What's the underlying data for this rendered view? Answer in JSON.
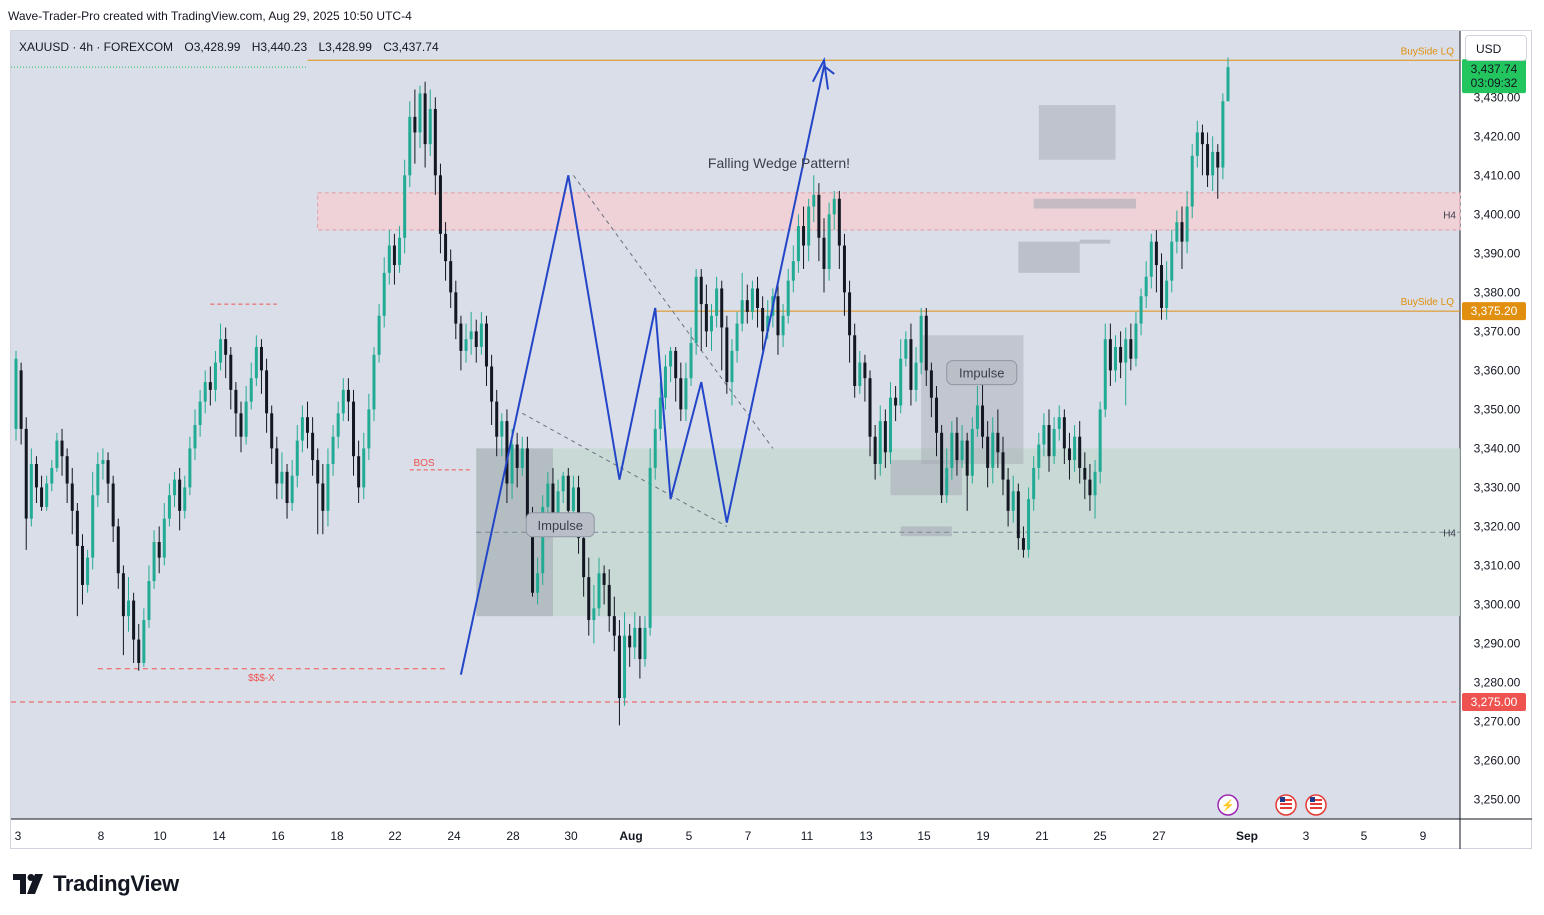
{
  "header": {
    "publisher_line": "Wave-Trader-Pro created with TradingView.com, Aug 29, 2025 10:50 UTC-4"
  },
  "symbol": {
    "name": "XAUUSD · 4h · FOREXCOM",
    "open": "O3,428.99",
    "high": "H3,440.23",
    "low": "L3,428.99",
    "close": "C3,437.74"
  },
  "currency_button": "USD",
  "brand": {
    "name": "TradingView"
  },
  "colors": {
    "up": "#22ab94",
    "down": "#131722",
    "price_badge": "#22c55e",
    "lq_line": "#e08f0e",
    "bos_line": "#ef5350",
    "pattern_line": "#2345c8",
    "demand_zone": "#c6d8d2",
    "supply_zone": "#f2d1d6",
    "impulse_box": "#a3a8b3"
  },
  "chart_data": {
    "type": "candlestick",
    "symbol": "XAUUSD",
    "timeframe": "4h",
    "ylim": [
      3245,
      3447
    ],
    "y_ticks": [
      3250,
      3260,
      3270,
      3280,
      3290,
      3300,
      3310,
      3320,
      3330,
      3340,
      3350,
      3360,
      3370,
      3380,
      3390,
      3400,
      3410,
      3420,
      3430
    ],
    "y_tick_labels": [
      "3,250.00",
      "3,260.00",
      "3,270.00",
      "3,280.00",
      "3,290.00",
      "3,300.00",
      "3,310.00",
      "3,320.00",
      "3,330.00",
      "3,340.00",
      "3,350.00",
      "3,360.00",
      "3,370.00",
      "3,380.00",
      "3,390.00",
      "3,400.00",
      "3,410.00",
      "3,420.00",
      "3,430.00"
    ],
    "x_tick_labels": [
      "3",
      "8",
      "10",
      "14",
      "16",
      "18",
      "22",
      "24",
      "28",
      "30",
      "Aug",
      "5",
      "7",
      "11",
      "13",
      "15",
      "19",
      "21",
      "25",
      "27",
      "Sep",
      "3",
      "5",
      "9"
    ],
    "current_price": {
      "value": "3,437.74",
      "countdown": "03:09:32"
    },
    "price_tags": [
      {
        "label": "3,375.20",
        "value": 3375.2,
        "color": "#e08f0e"
      },
      {
        "label": "3,275.00",
        "value": 3275.0,
        "color": "#ef5350"
      }
    ],
    "annotations": {
      "pattern_title": "Falling Wedge Pattern!",
      "buyside_top": "BuySide LQ",
      "buyside_mid": "BuySide LQ",
      "h4_top": "H4",
      "h4_bottom": "H4",
      "impulse_1": "Impulse",
      "impulse_2": "Impulse",
      "bos": "BOS",
      "sss": "$$$-X"
    },
    "levels": {
      "buyside_top": 3439.5,
      "buyside_mid": 3375.2,
      "sell_line": 3275.0,
      "sss_line": 3283.5,
      "bos_line": 3334.5,
      "upper_dash": 3377.0,
      "h4_mid": 3318.5
    },
    "wedge_path": [
      [
        3282,
        3410
      ],
      [
        3327,
        3376
      ],
      [
        3310,
        3357
      ],
      [
        3321,
        3323
      ],
      [
        3328
      ],
      [
        3438
      ]
    ],
    "candles": [
      [
        3345,
        3363,
        3342,
        3365
      ],
      [
        3360,
        3345,
        3341,
        3362
      ],
      [
        3345,
        3322,
        3314,
        3348
      ],
      [
        3322,
        3336,
        3320,
        3340
      ],
      [
        3336,
        3330,
        3326,
        3338
      ],
      [
        3330,
        3325,
        3324,
        3333
      ],
      [
        3325,
        3331,
        3324,
        3333
      ],
      [
        3331,
        3335,
        3329,
        3337
      ],
      [
        3335,
        3342,
        3334,
        3344
      ],
      [
        3342,
        3338,
        3333,
        3345
      ],
      [
        3338,
        3331,
        3326,
        3340
      ],
      [
        3331,
        3324,
        3318,
        3335
      ],
      [
        3324,
        3315,
        3297,
        3326
      ],
      [
        3315,
        3305,
        3300,
        3318
      ],
      [
        3305,
        3312,
        3303,
        3314
      ],
      [
        3312,
        3328,
        3309,
        3334
      ],
      [
        3328,
        3336,
        3325,
        3339
      ],
      [
        3336,
        3337,
        3332,
        3340
      ],
      [
        3337,
        3331,
        3326,
        3339
      ],
      [
        3331,
        3320,
        3316,
        3333
      ],
      [
        3320,
        3308,
        3304,
        3322
      ],
      [
        3308,
        3297,
        3287,
        3310
      ],
      [
        3297,
        3301,
        3293,
        3307
      ],
      [
        3301,
        3291,
        3285,
        3303
      ],
      [
        3291,
        3285,
        3283,
        3295
      ],
      [
        3285,
        3296,
        3284,
        3299
      ],
      [
        3296,
        3306,
        3294,
        3310
      ],
      [
        3306,
        3316,
        3304,
        3319
      ],
      [
        3316,
        3312,
        3308,
        3320
      ],
      [
        3312,
        3322,
        3310,
        3326
      ],
      [
        3322,
        3328,
        3320,
        3331
      ],
      [
        3328,
        3332,
        3325,
        3334
      ],
      [
        3332,
        3324,
        3319,
        3335
      ],
      [
        3324,
        3330,
        3322,
        3333
      ],
      [
        3330,
        3340,
        3328,
        3343
      ],
      [
        3340,
        3346,
        3337,
        3350
      ],
      [
        3346,
        3352,
        3343,
        3355
      ],
      [
        3352,
        3357,
        3349,
        3360
      ],
      [
        3357,
        3355,
        3351,
        3361
      ],
      [
        3355,
        3362,
        3352,
        3365
      ],
      [
        3362,
        3368,
        3360,
        3372
      ],
      [
        3368,
        3364,
        3358,
        3371
      ],
      [
        3364,
        3355,
        3350,
        3366
      ],
      [
        3355,
        3349,
        3343,
        3357
      ],
      [
        3349,
        3343,
        3339,
        3352
      ],
      [
        3343,
        3352,
        3341,
        3356
      ],
      [
        3352,
        3358,
        3350,
        3362
      ],
      [
        3358,
        3366,
        3356,
        3369
      ],
      [
        3366,
        3360,
        3354,
        3368
      ],
      [
        3360,
        3349,
        3344,
        3363
      ],
      [
        3349,
        3340,
        3336,
        3351
      ],
      [
        3340,
        3331,
        3327,
        3343
      ],
      [
        3331,
        3334,
        3327,
        3339
      ],
      [
        3334,
        3326,
        3322,
        3336
      ],
      [
        3326,
        3333,
        3324,
        3337
      ],
      [
        3333,
        3342,
        3330,
        3346
      ],
      [
        3342,
        3348,
        3339,
        3351
      ],
      [
        3348,
        3344,
        3340,
        3352
      ],
      [
        3344,
        3337,
        3333,
        3348
      ],
      [
        3337,
        3331,
        3318,
        3340
      ],
      [
        3331,
        3324,
        3318,
        3336
      ],
      [
        3324,
        3336,
        3320,
        3340
      ],
      [
        3336,
        3343,
        3333,
        3346
      ],
      [
        3343,
        3349,
        3340,
        3352
      ],
      [
        3349,
        3355,
        3347,
        3358
      ],
      [
        3355,
        3352,
        3347,
        3358
      ],
      [
        3352,
        3338,
        3333,
        3355
      ],
      [
        3338,
        3330,
        3326,
        3342
      ],
      [
        3330,
        3340,
        3327,
        3344
      ],
      [
        3340,
        3350,
        3337,
        3354
      ],
      [
        3350,
        3364,
        3347,
        3366
      ],
      [
        3364,
        3374,
        3362,
        3377
      ],
      [
        3374,
        3385,
        3371,
        3389
      ],
      [
        3385,
        3392,
        3382,
        3396
      ],
      [
        3392,
        3387,
        3382,
        3395
      ],
      [
        3387,
        3394,
        3385,
        3397
      ],
      [
        3394,
        3410,
        3390,
        3414
      ],
      [
        3410,
        3425,
        3407,
        3429
      ],
      [
        3425,
        3421,
        3413,
        3432
      ],
      [
        3421,
        3431,
        3417,
        3433
      ],
      [
        3431,
        3418,
        3412,
        3434
      ],
      [
        3418,
        3427,
        3415,
        3432
      ],
      [
        3427,
        3410,
        3405,
        3430
      ],
      [
        3410,
        3395,
        3390,
        3413
      ],
      [
        3395,
        3388,
        3383,
        3398
      ],
      [
        3388,
        3380,
        3376,
        3391
      ],
      [
        3380,
        3372,
        3368,
        3383
      ],
      [
        3372,
        3365,
        3360,
        3374
      ],
      [
        3365,
        3368,
        3362,
        3372
      ],
      [
        3368,
        3370,
        3364,
        3375
      ],
      [
        3370,
        3366,
        3362,
        3373
      ],
      [
        3366,
        3372,
        3364,
        3375
      ],
      [
        3372,
        3361,
        3356,
        3374
      ],
      [
        3361,
        3352,
        3346,
        3364
      ],
      [
        3352,
        3343,
        3338,
        3355
      ],
      [
        3343,
        3347,
        3338,
        3349
      ],
      [
        3347,
        3331,
        3326,
        3350
      ],
      [
        3331,
        3341,
        3327,
        3345
      ],
      [
        3341,
        3335,
        3330,
        3344
      ],
      [
        3335,
        3340,
        3333,
        3343
      ],
      [
        3340,
        3322,
        3318,
        3343
      ],
      [
        3322,
        3303,
        3302,
        3325
      ],
      [
        3303,
        3308,
        3300,
        3312
      ],
      [
        3308,
        3325,
        3305,
        3328
      ],
      [
        3325,
        3331,
        3322,
        3334
      ],
      [
        3331,
        3322,
        3319,
        3335
      ],
      [
        3322,
        3329,
        3320,
        3332
      ],
      [
        3329,
        3333,
        3326,
        3334
      ],
      [
        3333,
        3324,
        3320,
        3335
      ],
      [
        3324,
        3330,
        3322,
        3333
      ],
      [
        3330,
        3317,
        3313,
        3333
      ],
      [
        3317,
        3307,
        3302,
        3320
      ],
      [
        3307,
        3296,
        3292,
        3312
      ],
      [
        3296,
        3299,
        3290,
        3305
      ],
      [
        3299,
        3308,
        3297,
        3312
      ],
      [
        3308,
        3305,
        3300,
        3310
      ],
      [
        3305,
        3297,
        3293,
        3309
      ],
      [
        3297,
        3292,
        3288,
        3302
      ],
      [
        3292,
        3276,
        3269,
        3296
      ],
      [
        3276,
        3292,
        3274,
        3298
      ],
      [
        3292,
        3289,
        3284,
        3295
      ],
      [
        3289,
        3294,
        3286,
        3298
      ],
      [
        3294,
        3286,
        3281,
        3297
      ],
      [
        3286,
        3294,
        3284,
        3297
      ],
      [
        3294,
        3335,
        3292,
        3340
      ],
      [
        3335,
        3345,
        3332,
        3350
      ],
      [
        3345,
        3353,
        3342,
        3357
      ],
      [
        3353,
        3361,
        3350,
        3364
      ],
      [
        3361,
        3365,
        3357,
        3366
      ],
      [
        3365,
        3358,
        3352,
        3366
      ],
      [
        3358,
        3350,
        3347,
        3362
      ],
      [
        3350,
        3358,
        3347,
        3362
      ],
      [
        3358,
        3367,
        3356,
        3371
      ],
      [
        3367,
        3384,
        3364,
        3386
      ],
      [
        3384,
        3377,
        3365,
        3386
      ],
      [
        3377,
        3370,
        3366,
        3382
      ],
      [
        3370,
        3374,
        3365,
        3377
      ],
      [
        3374,
        3381,
        3371,
        3384
      ],
      [
        3381,
        3371,
        3360,
        3383
      ],
      [
        3371,
        3357,
        3354,
        3374
      ],
      [
        3357,
        3365,
        3351,
        3368
      ],
      [
        3365,
        3372,
        3362,
        3375
      ],
      [
        3372,
        3378,
        3370,
        3385
      ],
      [
        3378,
        3375,
        3372,
        3382
      ],
      [
        3375,
        3381,
        3373,
        3383
      ],
      [
        3381,
        3376,
        3371,
        3384
      ],
      [
        3376,
        3370,
        3365,
        3379
      ],
      [
        3370,
        3374,
        3368,
        3378
      ],
      [
        3374,
        3379,
        3371,
        3381
      ],
      [
        3379,
        3369,
        3364,
        3382
      ],
      [
        3369,
        3374,
        3366,
        3377
      ],
      [
        3374,
        3383,
        3372,
        3386
      ],
      [
        3383,
        3388,
        3380,
        3392
      ],
      [
        3388,
        3397,
        3385,
        3400
      ],
      [
        3397,
        3392,
        3386,
        3402
      ],
      [
        3392,
        3402,
        3388,
        3404
      ],
      [
        3402,
        3405,
        3398,
        3410
      ],
      [
        3405,
        3394,
        3388,
        3408
      ],
      [
        3394,
        3386,
        3380,
        3399
      ],
      [
        3386,
        3400,
        3383,
        3403
      ],
      [
        3400,
        3404,
        3396,
        3406
      ],
      [
        3404,
        3392,
        3386,
        3406
      ],
      [
        3392,
        3380,
        3374,
        3395
      ],
      [
        3380,
        3369,
        3362,
        3383
      ],
      [
        3369,
        3356,
        3353,
        3372
      ],
      [
        3356,
        3362,
        3354,
        3365
      ],
      [
        3362,
        3358,
        3352,
        3364
      ],
      [
        3358,
        3343,
        3338,
        3360
      ],
      [
        3343,
        3336,
        3332,
        3346
      ],
      [
        3336,
        3347,
        3333,
        3351
      ],
      [
        3347,
        3339,
        3335,
        3350
      ],
      [
        3339,
        3353,
        3336,
        3357
      ],
      [
        3353,
        3351,
        3347,
        3356
      ],
      [
        3351,
        3363,
        3349,
        3368
      ],
      [
        3363,
        3368,
        3361,
        3370
      ],
      [
        3368,
        3355,
        3351,
        3372
      ],
      [
        3355,
        3362,
        3352,
        3366
      ],
      [
        3362,
        3374,
        3359,
        3376
      ],
      [
        3374,
        3360,
        3356,
        3376
      ],
      [
        3360,
        3353,
        3348,
        3362
      ],
      [
        3353,
        3344,
        3338,
        3356
      ],
      [
        3344,
        3328,
        3326,
        3346
      ],
      [
        3328,
        3335,
        3326,
        3340
      ],
      [
        3335,
        3344,
        3332,
        3347
      ],
      [
        3344,
        3337,
        3333,
        3348
      ],
      [
        3337,
        3342,
        3335,
        3346
      ],
      [
        3342,
        3333,
        3324,
        3344
      ],
      [
        3333,
        3345,
        3331,
        3348
      ],
      [
        3345,
        3351,
        3343,
        3356
      ],
      [
        3351,
        3343,
        3340,
        3358
      ],
      [
        3343,
        3335,
        3330,
        3347
      ],
      [
        3335,
        3344,
        3331,
        3348
      ],
      [
        3344,
        3339,
        3335,
        3350
      ],
      [
        3339,
        3332,
        3328,
        3343
      ],
      [
        3332,
        3324,
        3320,
        3335
      ],
      [
        3324,
        3329,
        3321,
        3333
      ],
      [
        3329,
        3317,
        3314,
        3331
      ],
      [
        3317,
        3314,
        3312,
        3320
      ],
      [
        3314,
        3327,
        3312,
        3330
      ],
      [
        3327,
        3335,
        3324,
        3338
      ],
      [
        3335,
        3341,
        3332,
        3344
      ],
      [
        3341,
        3346,
        3338,
        3349
      ],
      [
        3346,
        3338,
        3334,
        3350
      ],
      [
        3338,
        3345,
        3336,
        3348
      ],
      [
        3345,
        3348,
        3342,
        3351
      ],
      [
        3348,
        3340,
        3336,
        3350
      ],
      [
        3340,
        3337,
        3332,
        3344
      ],
      [
        3337,
        3343,
        3334,
        3346
      ],
      [
        3343,
        3335,
        3331,
        3347
      ],
      [
        3335,
        3332,
        3327,
        3339
      ],
      [
        3332,
        3328,
        3324,
        3336
      ],
      [
        3328,
        3334,
        3322,
        3337
      ],
      [
        3334,
        3350,
        3331,
        3352
      ],
      [
        3350,
        3368,
        3348,
        3372
      ],
      [
        3368,
        3360,
        3356,
        3372
      ],
      [
        3360,
        3366,
        3357,
        3369
      ],
      [
        3366,
        3362,
        3358,
        3370
      ],
      [
        3362,
        3368,
        3351,
        3371
      ],
      [
        3368,
        3363,
        3360,
        3372
      ],
      [
        3363,
        3372,
        3361,
        3375
      ],
      [
        3372,
        3379,
        3369,
        3381
      ],
      [
        3379,
        3384,
        3376,
        3388
      ],
      [
        3384,
        3393,
        3381,
        3395
      ],
      [
        3393,
        3387,
        3380,
        3396
      ],
      [
        3387,
        3376,
        3373,
        3390
      ],
      [
        3376,
        3383,
        3373,
        3388
      ],
      [
        3383,
        3393,
        3380,
        3396
      ],
      [
        3393,
        3398,
        3390,
        3401
      ],
      [
        3398,
        3393,
        3386,
        3402
      ],
      [
        3393,
        3402,
        3390,
        3406
      ],
      [
        3402,
        3415,
        3399,
        3418
      ],
      [
        3415,
        3421,
        3412,
        3424
      ],
      [
        3421,
        3418,
        3410,
        3423
      ],
      [
        3418,
        3410,
        3407,
        3421
      ],
      [
        3410,
        3416,
        3406,
        3420
      ],
      [
        3416,
        3412,
        3404,
        3418
      ],
      [
        3412,
        3429,
        3409,
        3431
      ],
      [
        3429,
        3437.74,
        3428.99,
        3440.23
      ]
    ]
  }
}
